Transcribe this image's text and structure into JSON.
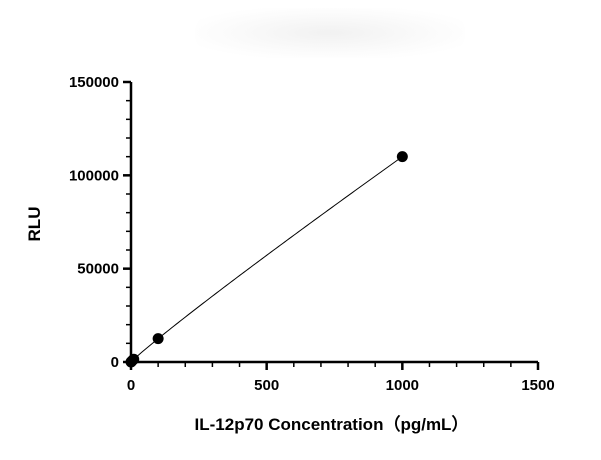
{
  "chart_data": {
    "type": "scatter",
    "title": "",
    "xlabel": "IL-12p70 Concentration（pg/mL）",
    "ylabel": "RLU",
    "xlim": [
      0,
      1500
    ],
    "ylim": [
      0,
      150000
    ],
    "x_ticks": [
      "0",
      "500",
      "1000",
      "1500"
    ],
    "y_ticks": [
      "0",
      "50000",
      "100000",
      "150000"
    ],
    "grid": false,
    "legend": "none",
    "fit_curve": true,
    "series": [
      {
        "x": [
          0,
          1.5,
          4,
          10,
          100,
          1000
        ],
        "y": [
          0,
          200,
          600,
          1500,
          12500,
          110000
        ],
        "color": "#000000"
      }
    ]
  }
}
